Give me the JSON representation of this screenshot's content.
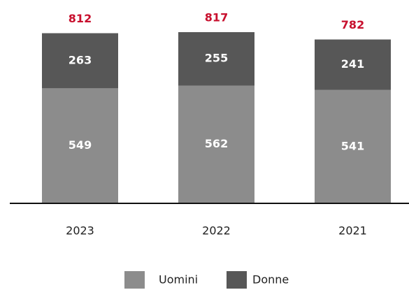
{
  "chart_data": {
    "type": "stacked_bar",
    "categories": [
      "2023",
      "2022",
      "2021"
    ],
    "series": [
      {
        "name": "Uomini",
        "color": "#8c8c8c",
        "values": [
          549,
          562,
          541
        ]
      },
      {
        "name": "Donne",
        "color": "#575757",
        "values": [
          263,
          255,
          241
        ]
      }
    ],
    "totals": [
      812,
      817,
      782
    ],
    "totals_color": "#c8102e"
  }
}
